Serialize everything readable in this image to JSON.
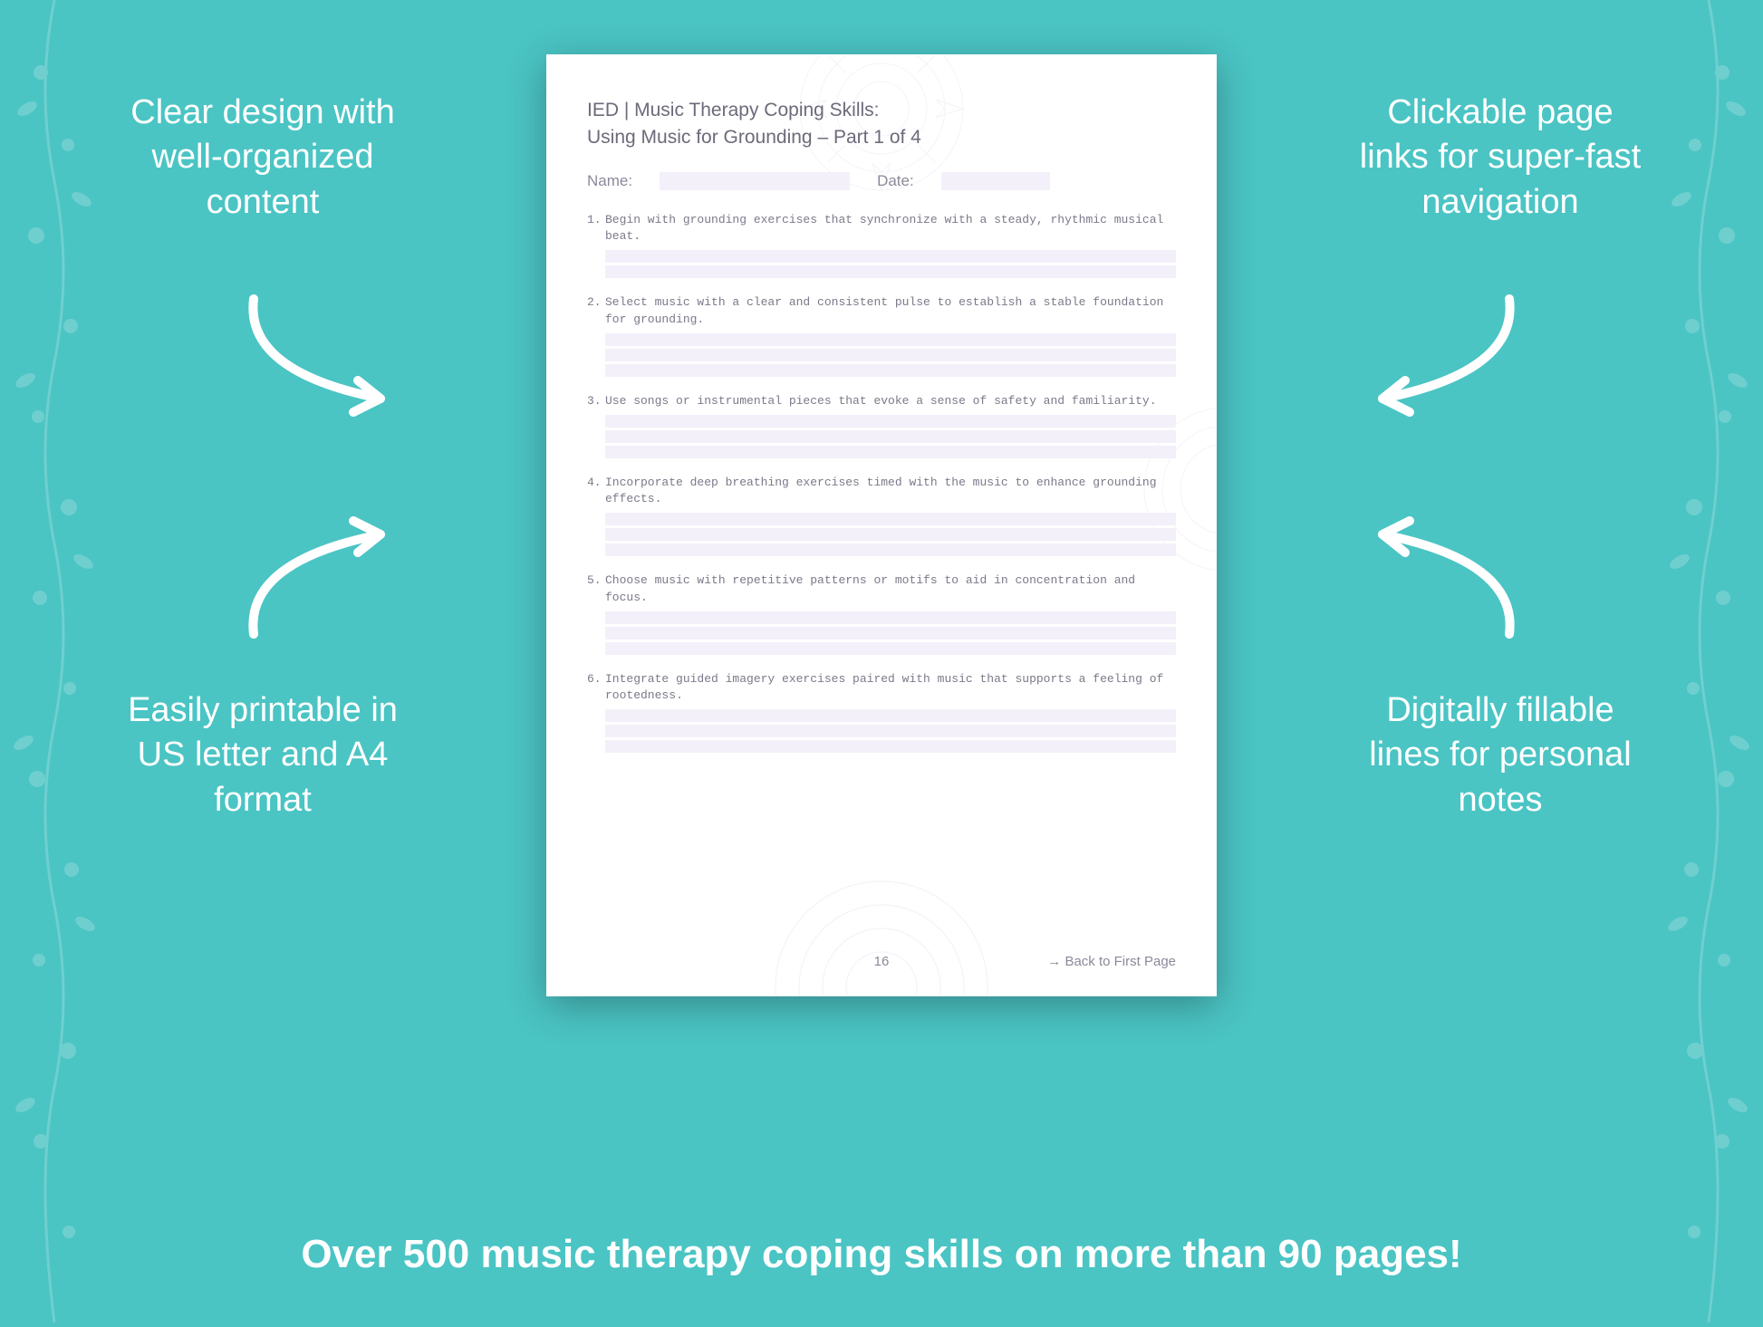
{
  "colors": {
    "background": "#4bc4c4",
    "callout_text": "#ffffff",
    "arrow": "#ffffff",
    "doc_bg": "#ffffff",
    "doc_text": "#6b6b7a",
    "doc_muted": "#8a8a9a",
    "field_fill": "#f4f0fa",
    "mandala": "#c8c0e0"
  },
  "callouts": {
    "top_left": "Clear design with well-organized content",
    "top_right": "Clickable page links for super-fast navigation",
    "bottom_left": "Easily printable in US letter and A4 format",
    "bottom_right": "Digitally fillable lines for personal notes"
  },
  "bottom_banner": "Over 500 music therapy coping skills on more than 90 pages!",
  "document": {
    "title": "IED | Music Therapy Coping Skills:",
    "subtitle": "Using Music for Grounding   – Part 1 of 4",
    "name_label": "Name:",
    "date_label": "Date:",
    "items": [
      {
        "num": "1.",
        "text": "Begin with grounding exercises that synchronize with a steady, rhythmic musical beat.",
        "lines": 2
      },
      {
        "num": "2.",
        "text": "Select music with a clear and consistent pulse to establish a stable foundation for grounding.",
        "lines": 3
      },
      {
        "num": "3.",
        "text": "Use songs or instrumental pieces that evoke a sense of safety and familiarity.",
        "lines": 3
      },
      {
        "num": "4.",
        "text": "Incorporate deep breathing exercises timed with the music to enhance grounding effects.",
        "lines": 3
      },
      {
        "num": "5.",
        "text": "Choose music with repetitive patterns or motifs to aid in concentration and focus.",
        "lines": 3
      },
      {
        "num": "6.",
        "text": "Integrate guided imagery exercises paired with music that supports a feeling of rootedness.",
        "lines": 3
      }
    ],
    "page_number": "16",
    "back_link": "→ Back to First Page"
  }
}
